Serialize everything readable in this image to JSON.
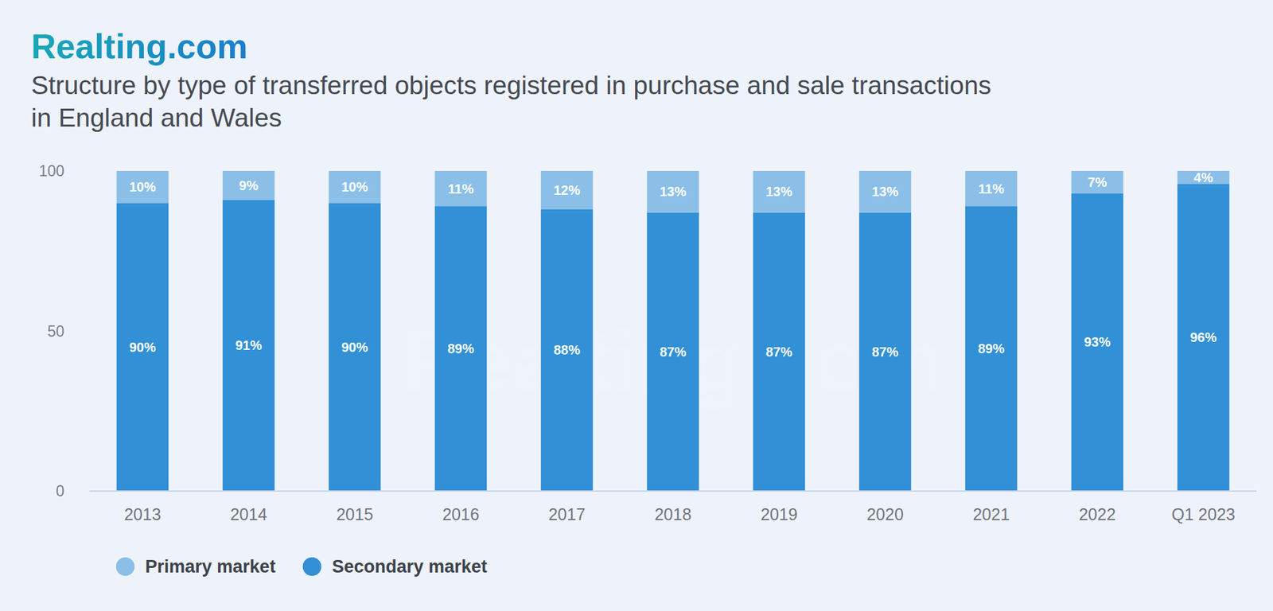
{
  "chart_data": {
    "type": "bar",
    "stacked": true,
    "data_labels": true,
    "grid": false,
    "legend": "bottom-left",
    "annotations": [
      "Realting.com"
    ],
    "title": "Structure by type of transferred objects registered in purchase and sale transactions in England and Wales",
    "categories": [
      "2013",
      "2014",
      "2015",
      "2016",
      "2017",
      "2018",
      "2019",
      "2020",
      "2021",
      "2022",
      "Q1 2023"
    ],
    "ylim": [
      0,
      100
    ],
    "yticks": [
      0,
      50,
      100
    ],
    "series": [
      {
        "name": "Primary market",
        "color": "#8bbfe8",
        "values": [
          10,
          9,
          10,
          11,
          12,
          13,
          13,
          13,
          11,
          7,
          4
        ],
        "value_labels": [
          "10%",
          "9%",
          "10%",
          "11%",
          "12%",
          "13%",
          "13%",
          "13%",
          "11%",
          "7%",
          "4%"
        ]
      },
      {
        "name": "Secondary market",
        "color": "#3190d6",
        "values": [
          90,
          91,
          90,
          89,
          88,
          87,
          87,
          87,
          89,
          93,
          96
        ],
        "value_labels": [
          "90%",
          "91%",
          "90%",
          "89%",
          "88%",
          "87%",
          "87%",
          "87%",
          "89%",
          "93%",
          "96%"
        ]
      }
    ]
  }
}
